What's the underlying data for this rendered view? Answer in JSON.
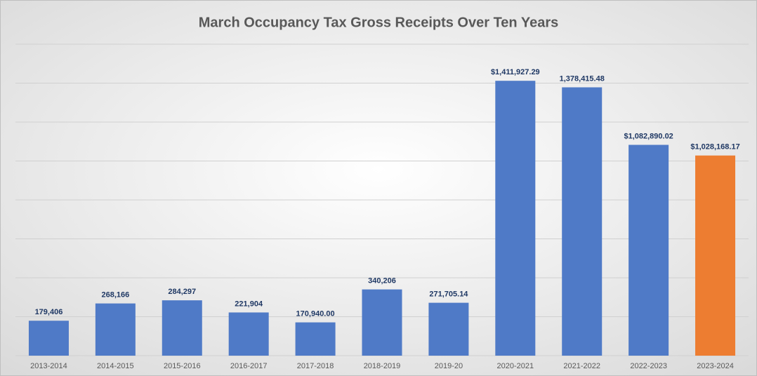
{
  "chart_data": {
    "type": "bar",
    "title": "March Occupancy Tax Gross Receipts Over Ten Years",
    "categories": [
      "2013-2014",
      "2014-2015",
      "2015-2016",
      "2016-2017",
      "2017-2018",
      "2018-2019",
      "2019-20",
      "2020-2021",
      "2021-2022",
      "2022-2023",
      "2023-2024"
    ],
    "values": [
      179406,
      268166,
      284297,
      221904,
      170940,
      340206,
      271705.14,
      1411927.29,
      1378415.48,
      1082890.02,
      1028168.17
    ],
    "value_labels": [
      "179,406",
      "268,166",
      "284,297",
      "221,904",
      "170,940.00",
      "340,206",
      "271,705.14",
      "$1,411,927.29",
      "1,378,415.48",
      "$1,082,890.02",
      "$1,028,168.17"
    ],
    "colors": [
      "#4f7ac7",
      "#4f7ac7",
      "#4f7ac7",
      "#4f7ac7",
      "#4f7ac7",
      "#4f7ac7",
      "#4f7ac7",
      "#4f7ac7",
      "#4f7ac7",
      "#4f7ac7",
      "#ed7d31"
    ],
    "ylim": [
      0,
      1600000
    ],
    "yticks": [
      0,
      200000,
      400000,
      600000,
      800000,
      1000000,
      1200000,
      1400000,
      1600000
    ],
    "grid": true
  }
}
